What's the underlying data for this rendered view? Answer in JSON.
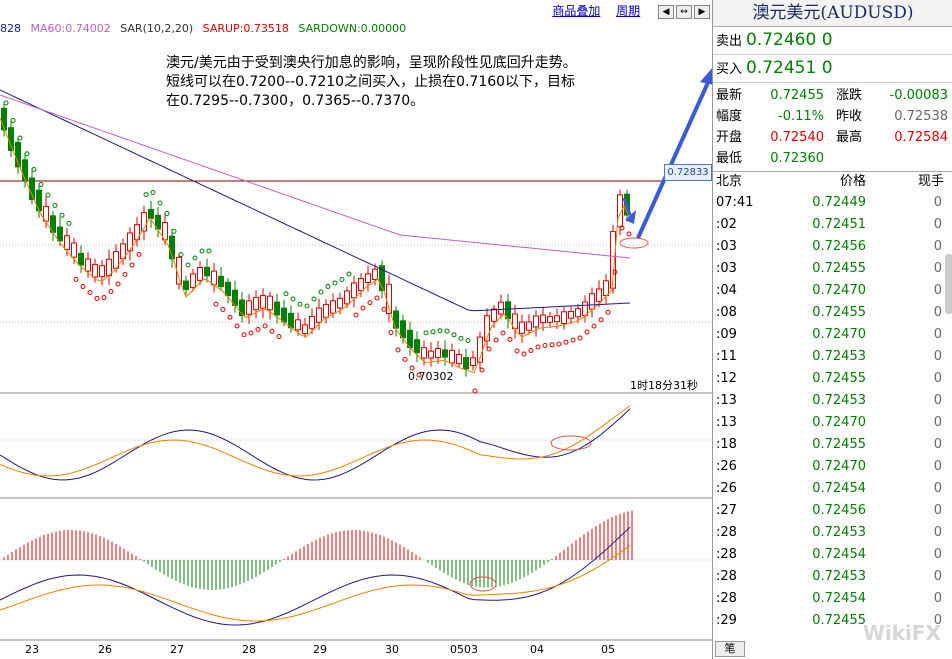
{
  "legend": {
    "ma_partial": "828",
    "ma60": "MA60:0.74002",
    "sar": "SAR(10,2,20)",
    "sarup": "SARUP:0.73518",
    "sardown": "SARDOWN:0.00000"
  },
  "toolbar": {
    "overlay_link": "商品叠加",
    "period_link": "周期"
  },
  "annotation": "澳元/美元由于受到澳央行加息的影响，呈现阶段性见底回升走势。短线可以在0.7200--0.7210之间买入，止损在0.7160以下，目标在0.7295--0.7300，0.7365--0.7370。",
  "chart": {
    "price_tag": "0.72833",
    "low_label": "0.70302",
    "timer": "1时18分31秒",
    "x_labels": [
      "23",
      "26",
      "27",
      "28",
      "29",
      "30",
      "0503",
      "04",
      "05"
    ]
  },
  "panel": {
    "title": "澳元美元(AUDUSD)",
    "sell_label": "卖出",
    "sell_price": "0.72460",
    "sell_qty": "0",
    "buy_label": "买入",
    "buy_price": "0.72451",
    "buy_qty": "0",
    "stats": {
      "latest_label": "最新",
      "latest": "0.72455",
      "change_label": "涨跌",
      "change": "-0.00083",
      "pct_label": "幅度",
      "pct": "-0.11%",
      "prev_label": "昨收",
      "prev": "0.72538",
      "open_label": "开盘",
      "open": "0.72540",
      "high_label": "最高",
      "high": "0.72584",
      "low_label": "最低",
      "low": "0.72360"
    },
    "ticks_header": [
      "北京",
      "价格",
      "现手"
    ],
    "ticks": [
      {
        "time": "07:41",
        "price": "0.72449",
        "qty": "0"
      },
      {
        "time": ":02",
        "price": "0.72451",
        "qty": "0"
      },
      {
        "time": ":03",
        "price": "0.72456",
        "qty": "0"
      },
      {
        "time": ":03",
        "price": "0.72455",
        "qty": "0"
      },
      {
        "time": ":04",
        "price": "0.72470",
        "qty": "0"
      },
      {
        "time": ":08",
        "price": "0.72455",
        "qty": "0"
      },
      {
        "time": ":09",
        "price": "0.72470",
        "qty": "0"
      },
      {
        "time": ":11",
        "price": "0.72453",
        "qty": "0"
      },
      {
        "time": ":12",
        "price": "0.72455",
        "qty": "0"
      },
      {
        "time": ":13",
        "price": "0.72453",
        "qty": "0"
      },
      {
        "time": ":13",
        "price": "0.72470",
        "qty": "0"
      },
      {
        "time": ":18",
        "price": "0.72455",
        "qty": "0"
      },
      {
        "time": ":26",
        "price": "0.72470",
        "qty": "0"
      },
      {
        "time": ":26",
        "price": "0.72454",
        "qty": "0"
      },
      {
        "time": ":27",
        "price": "0.72456",
        "qty": "0"
      },
      {
        "time": ":28",
        "price": "0.72453",
        "qty": "0"
      },
      {
        "time": ":28",
        "price": "0.72454",
        "qty": "0"
      },
      {
        "time": ":28",
        "price": "0.72453",
        "qty": "0"
      },
      {
        "time": ":28",
        "price": "0.72454",
        "qty": "0"
      },
      {
        "time": ":29",
        "price": "0.72455",
        "qty": "0"
      }
    ],
    "bottom_tab": "笔",
    "watermark": "WikiFX"
  },
  "colors": {
    "up": "#e00000",
    "down": "#008000",
    "ma_orange": "#f08000",
    "ma_navy": "#1a1a8c",
    "ma_violet": "#c060c0",
    "arrow": "#3a5ad8"
  }
}
